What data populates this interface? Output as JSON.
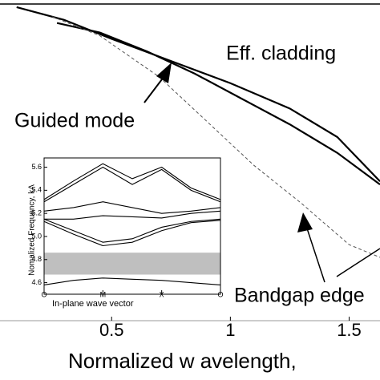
{
  "chart_data": [
    {
      "type": "line",
      "xlabel": "Normalized w avelength,",
      "xlim": [
        0.03,
        1.63
      ],
      "ylim": [
        0,
        1
      ],
      "xticks": [
        0.5,
        1,
        {
          "value": 1.5,
          "label": "1.5"
        }
      ],
      "annotations": [
        "Eff. cladding",
        "Guided mode",
        "Bandgap edge"
      ],
      "series": [
        {
          "color": "#000000",
          "dashed": false,
          "x": [
            0.1,
            0.3,
            0.5,
            0.75,
            1.0,
            1.25,
            1.45,
            1.63
          ],
          "values": [
            0.99,
            0.95,
            0.89,
            0.82,
            0.75,
            0.67,
            0.58,
            0.44
          ]
        },
        {
          "color": "#000000",
          "dashed": false,
          "x": [
            0.27,
            0.45,
            0.65,
            0.85,
            1.05,
            1.25,
            1.45,
            1.63
          ],
          "values": [
            0.94,
            0.91,
            0.85,
            0.78,
            0.7,
            0.62,
            0.53,
            0.43
          ]
        },
        {
          "color": "#555555",
          "dashed": true,
          "x": [
            0.25,
            0.45,
            0.7,
            0.9,
            1.1,
            1.3,
            1.5,
            1.63
          ],
          "values": [
            0.96,
            0.9,
            0.77,
            0.63,
            0.49,
            0.37,
            0.24,
            0.2
          ]
        }
      ]
    },
    {
      "type": "line",
      "xlabel": "In-plane wave vector",
      "ylabel": "Nomalized Frequency, kΛ",
      "xlim": [
        0,
        3
      ],
      "ylim": [
        4.5,
        5.68
      ],
      "xticks": [
        {
          "value": 0,
          "label": "O"
        },
        {
          "value": 1,
          "label": "M"
        },
        {
          "value": 2,
          "label": "X"
        },
        {
          "value": 3,
          "label": "O"
        }
      ],
      "yticks": [
        4.6,
        4.8,
        {
          "value": 5.0,
          "label": "5.0"
        },
        5.2,
        5.4,
        5.6
      ],
      "shaded_band": [
        4.67,
        4.86
      ],
      "band_color": "#bfbfbf",
      "series": [
        {
          "color": "#000000",
          "dashed": false,
          "x": [
            0,
            0.5,
            1,
            1.5,
            2,
            2.5,
            3
          ],
          "values": [
            4.58,
            4.62,
            4.64,
            4.63,
            4.62,
            4.6,
            4.58
          ]
        },
        {
          "color": "#000000",
          "dashed": false,
          "x": [
            0,
            0.5,
            1,
            1.5,
            2,
            2.5,
            3
          ],
          "values": [
            5.13,
            5.02,
            4.92,
            4.95,
            5.05,
            5.12,
            5.14
          ]
        },
        {
          "color": "#000000",
          "dashed": false,
          "x": [
            0,
            0.5,
            1,
            1.5,
            2,
            2.5,
            3
          ],
          "values": [
            5.15,
            5.05,
            4.95,
            4.98,
            5.08,
            5.13,
            5.15
          ]
        },
        {
          "color": "#000000",
          "dashed": false,
          "x": [
            0,
            0.5,
            1,
            1.5,
            2,
            2.5,
            3
          ],
          "values": [
            5.15,
            5.15,
            5.18,
            5.17,
            5.16,
            5.2,
            5.22
          ]
        },
        {
          "color": "#000000",
          "dashed": false,
          "x": [
            0,
            0.5,
            1,
            1.5,
            2,
            2.5,
            3
          ],
          "values": [
            5.22,
            5.25,
            5.3,
            5.25,
            5.2,
            5.22,
            5.25
          ]
        },
        {
          "color": "#000000",
          "dashed": false,
          "x": [
            0,
            0.5,
            1,
            1.5,
            2,
            2.5,
            3
          ],
          "values": [
            5.3,
            5.45,
            5.6,
            5.45,
            5.58,
            5.4,
            5.3
          ]
        },
        {
          "color": "#000000",
          "dashed": false,
          "x": [
            0,
            0.5,
            1,
            1.5,
            2,
            2.5,
            3
          ],
          "values": [
            5.32,
            5.48,
            5.63,
            5.5,
            5.6,
            5.42,
            5.32
          ]
        }
      ]
    }
  ]
}
